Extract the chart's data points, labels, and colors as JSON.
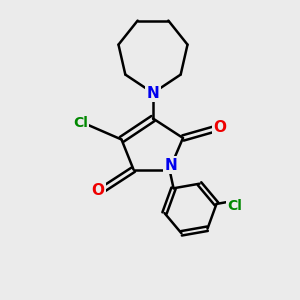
{
  "bg_color": "#ebebeb",
  "bond_color": "#000000",
  "N_color": "#0000ee",
  "O_color": "#ee0000",
  "Cl_color": "#008800",
  "bond_width": 1.8,
  "figsize": [
    3.0,
    3.0
  ],
  "dpi": 100,
  "xlim": [
    0,
    10
  ],
  "ylim": [
    0,
    10
  ]
}
